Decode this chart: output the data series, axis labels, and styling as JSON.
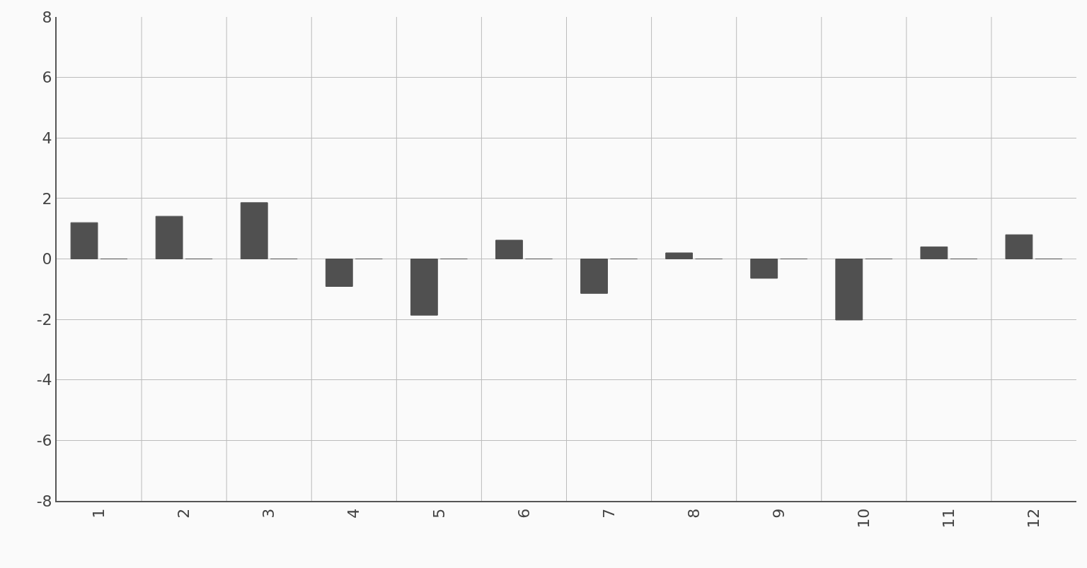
{
  "chart_data": {
    "type": "bar",
    "categories": [
      "1",
      "2",
      "3",
      "4",
      "5",
      "6",
      "7",
      "8",
      "9",
      "10",
      "11",
      "12"
    ],
    "series": [
      {
        "color": "#505050",
        "values": [
          1.2,
          1.41,
          1.86,
          -0.91,
          -1.86,
          0.62,
          -1.14,
          0.2,
          -0.64,
          -2.02,
          0.4,
          0.8
        ]
      },
      {
        "color": "#505050",
        "values": [
          0,
          0,
          0,
          0,
          0,
          0,
          0,
          0,
          0,
          0,
          0,
          0
        ]
      }
    ],
    "ylim": [
      -8,
      8
    ],
    "yticks": [
      -8,
      -6,
      -4,
      -2,
      0,
      2,
      4,
      6,
      8
    ],
    "grid": true,
    "legend": false
  }
}
